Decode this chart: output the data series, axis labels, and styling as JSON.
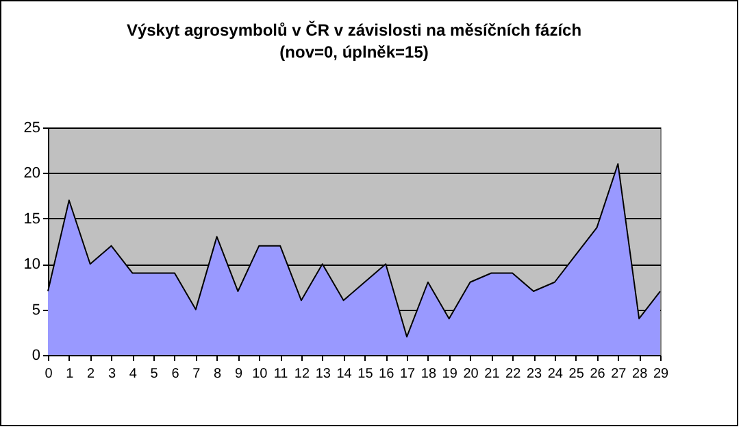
{
  "chart_data": {
    "type": "area",
    "title": "Výskyt agrosymbolů v ČR v závislosti na měsíčních fázích",
    "subtitle": "(nov=0, úplněk=15)",
    "x": [
      0,
      1,
      2,
      3,
      4,
      5,
      6,
      7,
      8,
      9,
      10,
      11,
      12,
      13,
      14,
      15,
      16,
      17,
      18,
      19,
      20,
      21,
      22,
      23,
      24,
      25,
      26,
      27,
      28,
      29
    ],
    "series": [
      {
        "color": "#9999ff",
        "values": [
          7,
          17,
          10,
          12,
          9,
          9,
          9,
          5,
          13,
          7,
          12,
          12,
          6,
          10,
          6,
          8,
          10,
          2,
          8,
          4,
          8,
          9,
          9,
          7,
          8,
          11,
          14,
          21,
          4,
          7
        ]
      }
    ],
    "xlim": [
      0,
      29
    ],
    "xticks": [
      0,
      1,
      2,
      3,
      4,
      5,
      6,
      7,
      8,
      9,
      10,
      11,
      12,
      13,
      14,
      15,
      16,
      17,
      18,
      19,
      20,
      21,
      22,
      23,
      24,
      25,
      26,
      27,
      28,
      29
    ],
    "ylim": [
      0,
      25
    ],
    "yticks": [
      0,
      5,
      10,
      15,
      20,
      25
    ],
    "grid": "y"
  }
}
